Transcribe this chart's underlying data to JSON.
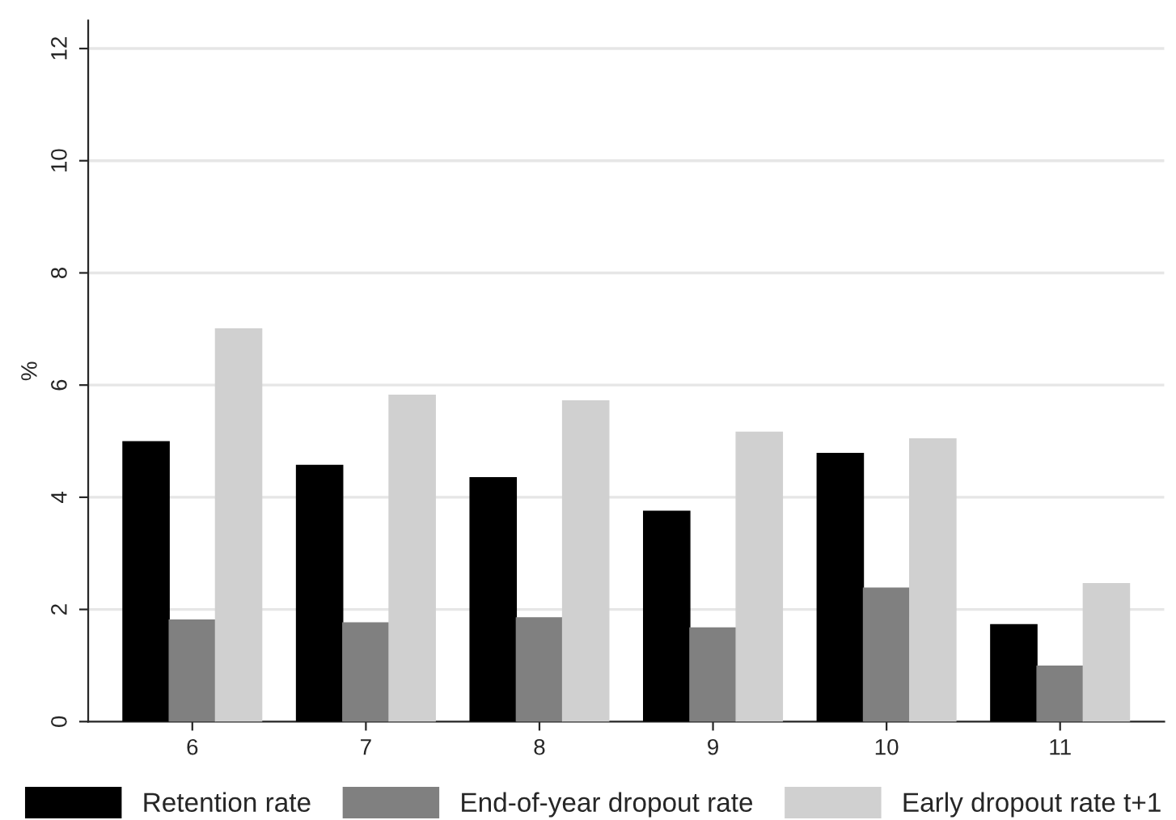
{
  "chart_data": {
    "type": "bar",
    "ylabel": "%",
    "categories": [
      "6",
      "7",
      "8",
      "9",
      "10",
      "11"
    ],
    "series": [
      {
        "name": "Retention rate",
        "color": "#000000",
        "values": [
          4.99,
          4.57,
          4.35,
          3.75,
          4.78,
          1.73
        ]
      },
      {
        "name": "End-of-year dropout rate",
        "color": "#808080",
        "values": [
          1.81,
          1.76,
          1.85,
          1.67,
          2.38,
          0.99
        ]
      },
      {
        "name": "Early dropout rate t+1",
        "color": "#d0d0d0",
        "values": [
          7.0,
          5.82,
          5.72,
          5.16,
          5.04,
          2.46
        ]
      }
    ],
    "ylim": [
      0,
      12.5
    ],
    "yticks": [
      0,
      2,
      4,
      6,
      8,
      10,
      12
    ],
    "grid": "y",
    "legend": "bottom"
  }
}
